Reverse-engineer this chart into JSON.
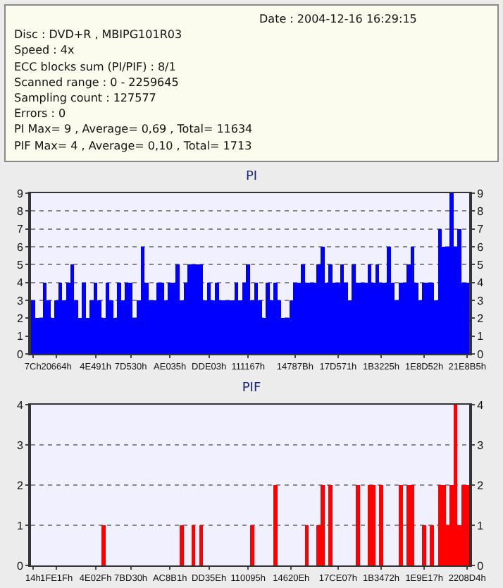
{
  "chart_data": [
    {
      "type": "other",
      "annotations": [
        "Date : 2004-12-16 16:29:15",
        "Disc : DVD+R , MBIPG101R03",
        "Speed : 4x",
        "ECC blocks sum (PI/PIF) : 8/1",
        "Scanned range : 0 - 2259645",
        "Sampling count : 127577",
        "Errors : 0",
        "PI Max= 9 , Average= 0,69 , Total= 11634",
        "PIF Max= 4 , Average= 0,10 , Total= 1713"
      ]
    },
    {
      "type": "bar",
      "title": "PI",
      "categories": [
        "7Ch",
        null,
        null,
        null,
        null,
        null,
        "20664h",
        null,
        null,
        null,
        null,
        null,
        null,
        null,
        null,
        null,
        "4E491h",
        null,
        null,
        null,
        null,
        null,
        null,
        null,
        null,
        "7D530h",
        null,
        null,
        null,
        null,
        null,
        null,
        null,
        null,
        null,
        "AE035h",
        null,
        null,
        null,
        null,
        null,
        null,
        null,
        null,
        null,
        "DDE03h",
        null,
        null,
        null,
        null,
        null,
        null,
        null,
        null,
        null,
        "111167h",
        null,
        null,
        null,
        null,
        null,
        null,
        null,
        null,
        null,
        null,
        null,
        "14787Bh",
        null,
        null,
        null,
        null,
        null,
        null,
        null,
        null,
        null,
        null,
        "17D571h",
        null,
        null,
        null,
        null,
        null,
        null,
        null,
        null,
        null,
        null,
        "1B3225h",
        null,
        null,
        null,
        null,
        null,
        null,
        null,
        null,
        null,
        null,
        "1E8D52h",
        null,
        null,
        null,
        null,
        null,
        null,
        null,
        null,
        null,
        null,
        "21E8B5h"
      ],
      "series": [
        {
          "color": "#0000ff",
          "values": [
            3,
            2,
            2,
            4,
            3,
            2,
            3,
            4,
            3,
            4,
            5,
            3,
            2,
            4,
            2,
            3,
            4,
            3,
            2,
            4,
            3,
            2,
            4,
            3,
            4,
            4,
            2,
            3,
            6,
            4,
            3,
            3,
            4,
            4,
            3,
            4,
            4,
            5,
            3,
            4,
            5,
            5,
            5,
            5,
            3,
            4,
            3,
            4,
            3,
            3,
            3,
            3,
            4,
            3,
            4,
            5,
            3,
            4,
            3,
            2,
            4,
            3,
            4,
            3,
            2,
            2,
            3,
            4,
            4,
            5,
            4,
            4,
            4,
            5,
            6,
            4,
            5,
            4,
            4,
            5,
            4,
            3,
            5,
            4,
            4,
            4,
            5,
            4,
            5,
            4,
            4,
            6,
            4,
            3,
            4,
            4,
            5,
            6,
            4,
            3,
            4,
            4,
            4,
            3,
            7,
            6,
            6,
            9,
            6,
            7,
            4,
            4
          ]
        }
      ],
      "ylim": [
        0,
        9
      ],
      "yticks": [
        0,
        1,
        2,
        3,
        4,
        5,
        6,
        7,
        8,
        9
      ],
      "y2lim": [
        0,
        9
      ],
      "y2ticks": [
        0,
        1,
        2,
        3,
        4,
        5,
        6,
        7,
        8,
        9
      ],
      "grid": "y"
    },
    {
      "type": "bar",
      "title": "PIF",
      "categories": [
        "14h",
        null,
        null,
        null,
        null,
        null,
        "1FE1Fh",
        null,
        null,
        null,
        null,
        null,
        null,
        null,
        null,
        null,
        "4E02Fh",
        null,
        null,
        null,
        null,
        null,
        null,
        null,
        null,
        "7BD30h",
        null,
        null,
        null,
        null,
        null,
        null,
        null,
        null,
        null,
        "AC8B1h",
        null,
        null,
        null,
        null,
        null,
        null,
        null,
        null,
        null,
        "DD35Eh",
        null,
        null,
        null,
        null,
        null,
        null,
        null,
        null,
        null,
        "110095h",
        null,
        null,
        null,
        null,
        null,
        null,
        null,
        null,
        null,
        null,
        "14620Eh",
        null,
        null,
        null,
        null,
        null,
        null,
        null,
        null,
        null,
        null,
        null,
        "17CE07h",
        null,
        null,
        null,
        null,
        null,
        null,
        null,
        null,
        null,
        null,
        "1B3472h",
        null,
        null,
        null,
        null,
        null,
        null,
        null,
        null,
        null,
        null,
        "1E9E17h",
        null,
        null,
        null,
        null,
        null,
        null,
        null,
        null,
        null,
        null,
        "2208D4h"
      ],
      "series": [
        {
          "color": "#ff0000",
          "values": [
            0,
            0,
            0,
            0,
            0,
            0,
            0,
            0,
            0,
            0,
            0,
            0,
            0,
            0,
            0,
            0,
            0,
            0,
            1,
            0,
            0,
            0,
            0,
            0,
            0,
            0,
            0,
            0,
            0,
            0,
            0,
            0,
            0,
            0,
            0,
            0,
            0,
            0,
            1,
            0,
            0,
            1,
            0,
            1,
            0,
            0,
            0,
            0,
            0,
            0,
            0,
            0,
            0,
            0,
            0,
            0,
            1,
            0,
            0,
            0,
            0,
            0,
            2,
            0,
            0,
            0,
            0,
            0,
            0,
            0,
            1,
            0,
            0,
            1,
            2,
            0,
            2,
            0,
            0,
            0,
            0,
            0,
            0,
            2,
            0,
            0,
            2,
            2,
            0,
            2,
            0,
            0,
            0,
            0,
            2,
            0,
            2,
            2,
            0,
            0,
            1,
            0,
            1,
            0,
            2,
            2,
            1,
            2,
            4,
            1,
            2,
            2
          ]
        }
      ],
      "ylim": [
        0,
        4
      ],
      "yticks": [
        0,
        1,
        2,
        3,
        4
      ],
      "y2lim": [
        0,
        4
      ],
      "y2ticks": [
        0,
        1,
        2,
        3,
        4
      ],
      "grid": "y"
    }
  ]
}
